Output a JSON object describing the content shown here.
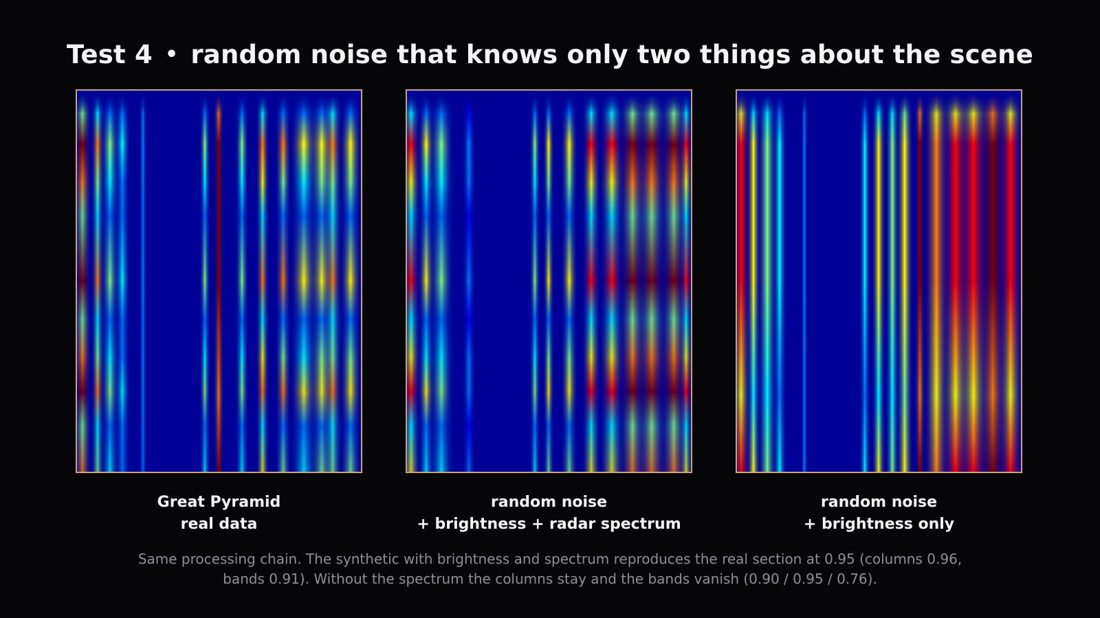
{
  "title": {
    "prefix": "Test 4",
    "separator": "•",
    "text": "random noise that knows only two things about the scene"
  },
  "panels": [
    {
      "caption_line1": "Great Pyramid",
      "caption_line2": "real data"
    },
    {
      "caption_line1": "random noise",
      "caption_line2": "+ brightness + radar spectrum"
    },
    {
      "caption_line1": "random noise",
      "caption_line2": "+ brightness only"
    }
  ],
  "footnote": {
    "line1": "Same processing chain. The synthetic with brightness and spectrum reproduces the real section at 0.95 (columns 0.96,",
    "line2": "bands 0.91). Without the spectrum the columns stay and the bands vanish (0.90 / 0.95 / 0.76)."
  },
  "colors": {
    "background": "#060507",
    "panel_border": "#c9a574",
    "colormap": "jet",
    "caption_text": "#f4f4f4",
    "footnote_text": "#8f8f96"
  }
}
